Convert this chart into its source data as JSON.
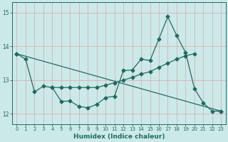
{
  "xlabel": "Humidex (Indice chaleur)",
  "xlim": [
    -0.5,
    23.5
  ],
  "ylim": [
    11.7,
    15.3
  ],
  "yticks": [
    12,
    13,
    14,
    15
  ],
  "xticks": [
    0,
    1,
    2,
    3,
    4,
    5,
    6,
    7,
    8,
    9,
    10,
    11,
    12,
    13,
    14,
    15,
    16,
    17,
    18,
    19,
    20,
    21,
    22,
    23
  ],
  "bg_color": "#cce9e9",
  "line_color": "#1f6b5e",
  "grid_color": "#b0d8d8",
  "line1_x": [
    0,
    1,
    2,
    3,
    4,
    5,
    6,
    7,
    8,
    9,
    10,
    11,
    12,
    13,
    14,
    15,
    16,
    17,
    18,
    19,
    20,
    21,
    22,
    23
  ],
  "line1_y": [
    13.78,
    13.62,
    12.65,
    12.82,
    12.78,
    12.37,
    12.38,
    12.22,
    12.18,
    12.28,
    12.48,
    12.52,
    13.28,
    13.3,
    13.62,
    13.58,
    14.22,
    14.88,
    14.32,
    13.82,
    12.75,
    12.32,
    12.08,
    12.08
  ],
  "line2_x": [
    0,
    23
  ],
  "line2_y": [
    13.78,
    12.08
  ],
  "line3_x": [
    4,
    5,
    6,
    7,
    8,
    9,
    10,
    11,
    12,
    13,
    14,
    15,
    16,
    17,
    18,
    19,
    20
  ],
  "line3_y": [
    12.78,
    12.78,
    12.78,
    12.78,
    12.78,
    12.78,
    12.85,
    12.92,
    13.0,
    13.08,
    13.18,
    13.25,
    13.38,
    13.5,
    13.62,
    13.72,
    13.78
  ]
}
